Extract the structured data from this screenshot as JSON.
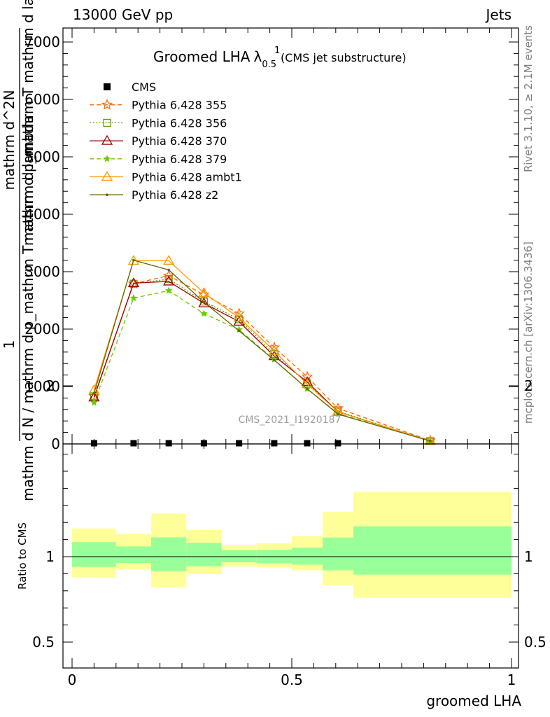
{
  "header": {
    "left": "13000 GeV pp",
    "right": "Jets"
  },
  "side": {
    "rivet": "Rivet 3.1.10, ≥ 2.1M events",
    "mcplots": "mcplots.cern.ch [arXiv:1306.3436]"
  },
  "chart_data": [
    {
      "type": "line",
      "title": "Groomed LHA",
      "title_symbol": "λ",
      "title_sub": "0.5",
      "title_sup": "1",
      "title_note": "(CMS jet substructure)",
      "ylabel_numerator": "1",
      "ylabel_denominator": "mathrm d N / mathrm d p_mathrm T mathrm d lambda",
      "ylabel_mid": "mathrm d^2N",
      "ylabel_mid2": "mathrm d p_mathrm T mathrm d lambda",
      "watermark": "CMS_2021_I1920187",
      "ylim": [
        0,
        7000
      ],
      "xlim": [
        0,
        1
      ],
      "yticks": [
        0,
        1000,
        2000,
        3000,
        4000,
        5000,
        6000,
        7000
      ],
      "ytick_labels": [
        "0",
        "1000",
        "2000",
        "3000",
        "4000",
        "5000",
        "6000",
        "7000"
      ],
      "x": [
        0.05,
        0.14,
        0.22,
        0.3,
        0.38,
        0.46,
        0.535,
        0.605,
        0.815
      ],
      "series": [
        {
          "name": "CMS",
          "color": "#000000",
          "style": "data",
          "x": [
            0.05,
            0.14,
            0.22,
            0.3,
            0.38,
            0.46,
            0.535,
            0.605
          ],
          "values": [
            0,
            0,
            0,
            0,
            0,
            0,
            0,
            0
          ]
        },
        {
          "name": "Pythia 6.428 355",
          "color": "#ff6600",
          "style": "dashed",
          "marker": "star-open",
          "values": [
            830,
            2790,
            2930,
            2600,
            2270,
            1680,
            1170,
            620,
            60
          ]
        },
        {
          "name": "Pythia 6.428 356",
          "color": "#669900",
          "style": "dotted",
          "marker": "square-open",
          "values": [
            830,
            2790,
            2870,
            2480,
            2170,
            1570,
            1050,
            570,
            50
          ]
        },
        {
          "name": "Pythia 6.428 370",
          "color": "#990000",
          "style": "solid",
          "marker": "triangle-open",
          "values": [
            810,
            2800,
            2830,
            2450,
            2130,
            1530,
            1080,
            560,
            50
          ]
        },
        {
          "name": "Pythia 6.428 379",
          "color": "#66cc00",
          "style": "dashed",
          "marker": "star",
          "values": [
            720,
            2540,
            2670,
            2270,
            1990,
            1470,
            960,
            530,
            50
          ]
        },
        {
          "name": "Pythia 6.428 ambt1",
          "color": "#ff9900",
          "style": "solid",
          "marker": "triangle-open",
          "values": [
            940,
            3190,
            3190,
            2630,
            2200,
            1620,
            1040,
            560,
            50
          ]
        },
        {
          "name": "Pythia 6.428 z2",
          "color": "#666600",
          "style": "solid",
          "marker": "dot",
          "values": [
            880,
            3200,
            3030,
            2470,
            1970,
            1460,
            960,
            520,
            50
          ]
        }
      ]
    },
    {
      "type": "area",
      "ylabel": "Ratio to CMS",
      "xlabel": "groomed LHA",
      "ylim": [
        0.4,
        2.4
      ],
      "xlim": [
        0,
        1
      ],
      "yticks": [
        0.5,
        1,
        2
      ],
      "ytick_labels": [
        "0.5",
        "1",
        "2"
      ],
      "xticks": [
        0,
        0.5,
        1
      ],
      "xtick_labels": [
        "0",
        "0.5",
        "1"
      ],
      "bins": [
        0,
        0.1,
        0.18,
        0.26,
        0.34,
        0.42,
        0.5,
        0.57,
        0.64,
        1.0
      ],
      "band_inner": {
        "color": "#99ff99",
        "low": [
          0.94,
          0.963,
          0.915,
          0.944,
          0.967,
          0.962,
          0.953,
          0.92,
          0.895
        ],
        "high": [
          1.085,
          1.06,
          1.113,
          1.081,
          1.038,
          1.04,
          1.053,
          1.112,
          1.178
        ]
      },
      "band_outer": {
        "color": "#ffff99",
        "low": [
          0.878,
          0.925,
          0.82,
          0.898,
          0.942,
          0.938,
          0.92,
          0.832,
          0.76
        ],
        "high": [
          1.165,
          1.135,
          1.252,
          1.156,
          1.065,
          1.078,
          1.12,
          1.262,
          1.38
        ]
      }
    }
  ]
}
